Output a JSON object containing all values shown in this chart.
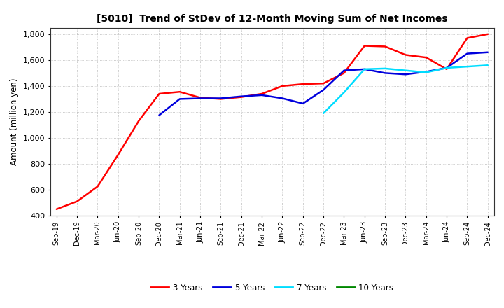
{
  "title": "[5010]  Trend of StDev of 12-Month Moving Sum of Net Incomes",
  "ylabel": "Amount (million yen)",
  "ylim": [
    400,
    1850
  ],
  "yticks": [
    400,
    600,
    800,
    1000,
    1200,
    1400,
    1600,
    1800
  ],
  "background_color": "#ffffff",
  "grid_color": "#bbbbbb",
  "x_labels": [
    "Sep-19",
    "Dec-19",
    "Mar-20",
    "Jun-20",
    "Sep-20",
    "Dec-20",
    "Mar-21",
    "Jun-21",
    "Sep-21",
    "Dec-21",
    "Mar-22",
    "Jun-22",
    "Sep-22",
    "Dec-22",
    "Mar-23",
    "Jun-23",
    "Sep-23",
    "Dec-23",
    "Mar-24",
    "Jun-24",
    "Sep-24",
    "Dec-24"
  ],
  "series": [
    {
      "name": "3 Years",
      "color": "#ff0000",
      "data_x": [
        0,
        1,
        2,
        3,
        4,
        5,
        6,
        7,
        8,
        9,
        10,
        11,
        12,
        13,
        14,
        15,
        16,
        17,
        18,
        19,
        20,
        21
      ],
      "data_y": [
        450,
        510,
        625,
        870,
        1130,
        1340,
        1355,
        1310,
        1300,
        1315,
        1340,
        1400,
        1415,
        1420,
        1500,
        1710,
        1705,
        1640,
        1620,
        1530,
        1770,
        1800
      ]
    },
    {
      "name": "5 Years",
      "color": "#0000dd",
      "data_x": [
        5,
        6,
        7,
        8,
        9,
        10,
        11,
        12,
        13,
        14,
        15,
        16,
        17,
        18,
        19,
        20,
        21
      ],
      "data_y": [
        1175,
        1300,
        1305,
        1305,
        1320,
        1330,
        1305,
        1265,
        1370,
        1520,
        1530,
        1500,
        1490,
        1510,
        1540,
        1650,
        1660
      ]
    },
    {
      "name": "7 Years",
      "color": "#00ddff",
      "data_x": [
        13,
        14,
        15,
        16,
        17,
        18,
        19,
        20,
        21
      ],
      "data_y": [
        1190,
        1350,
        1530,
        1535,
        1520,
        1505,
        1540,
        1550,
        1560
      ]
    },
    {
      "name": "10 Years",
      "color": "#008800",
      "data_x": [],
      "data_y": []
    }
  ],
  "legend_labels": [
    "3 Years",
    "5 Years",
    "7 Years",
    "10 Years"
  ],
  "legend_colors": [
    "#ff0000",
    "#0000dd",
    "#00ddff",
    "#008800"
  ]
}
